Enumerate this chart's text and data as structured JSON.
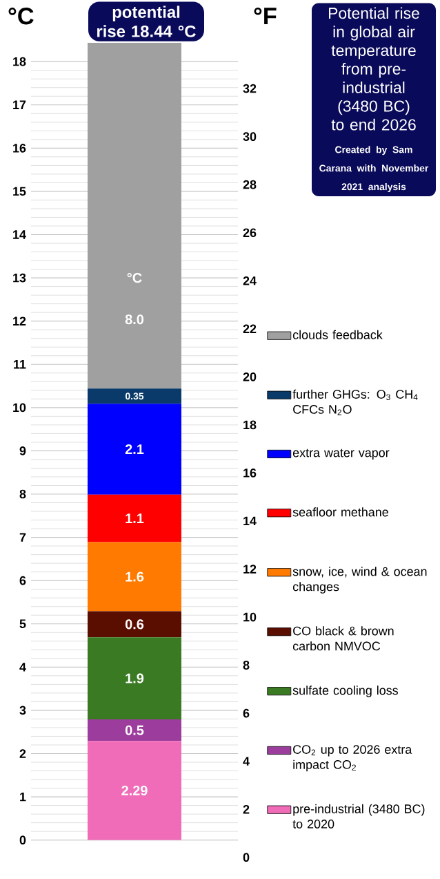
{
  "chart_data": {
    "type": "bar",
    "stacked": true,
    "title": "Potential rise in global air temperature from pre-industrial (3480 BC) to end 2026",
    "ylabel": "°C",
    "y2label": "°F",
    "categories": [
      null
    ],
    "series": [
      {
        "name": "pre-industrial (3480 BC) to 2020",
        "color": "#f06cb8",
        "values": [
          2.29
        ],
        "value_labels": [
          "2.29"
        ]
      },
      {
        "name": "CO$_{2}$ up to 2026 extra impact CO$_{2}$",
        "color": "#9c3c9c",
        "values": [
          0.5
        ],
        "value_labels": [
          "0.5"
        ]
      },
      {
        "name": "sulfate cooling loss",
        "color": "#3a7a22",
        "values": [
          1.9
        ],
        "value_labels": [
          "1.9"
        ]
      },
      {
        "name": "CO black & brown carbon NMVOC",
        "color": "#5a0e00",
        "values": [
          0.6
        ],
        "value_labels": [
          "0.6"
        ]
      },
      {
        "name": "snow, ice, wind & ocean changes",
        "color": "#ff7a00",
        "values": [
          1.6
        ],
        "value_labels": [
          "1.6"
        ]
      },
      {
        "name": "seafloor methane",
        "color": "#ff0000",
        "values": [
          1.1
        ],
        "value_labels": [
          "1.1"
        ]
      },
      {
        "name": "extra water vapor",
        "color": "#0000ff",
        "values": [
          2.1
        ],
        "value_labels": [
          "2.1"
        ]
      },
      {
        "name": "further GHGs: O$_{3}$ CH$_{4}$ CFCs N$_{2}$O",
        "color": "#0a3a6a",
        "values": [
          0.35
        ],
        "value_labels": [
          "0.35"
        ]
      },
      {
        "name": "clouds feedback",
        "color": "#a0a0a0",
        "values": [
          8.0
        ],
        "value_labels": [
          "8.0"
        ]
      }
    ],
    "ylim": [
      0,
      18.44
    ],
    "yticks": [
      0,
      1,
      2,
      3,
      4,
      5,
      6,
      7,
      8,
      9,
      10,
      11,
      12,
      13,
      14,
      15,
      16,
      17,
      18
    ],
    "y2lim": [
      0,
      33.192
    ],
    "y2ticks": [
      0,
      2,
      4,
      6,
      8,
      10,
      12,
      14,
      16,
      18,
      20,
      22,
      24,
      26,
      28,
      30,
      32
    ],
    "grid": "y",
    "legend": "right",
    "annotations": [
      "potential rise 18.44 °C",
      "Created by Sam Carana with November 2021 analysis",
      "°C"
    ]
  }
}
